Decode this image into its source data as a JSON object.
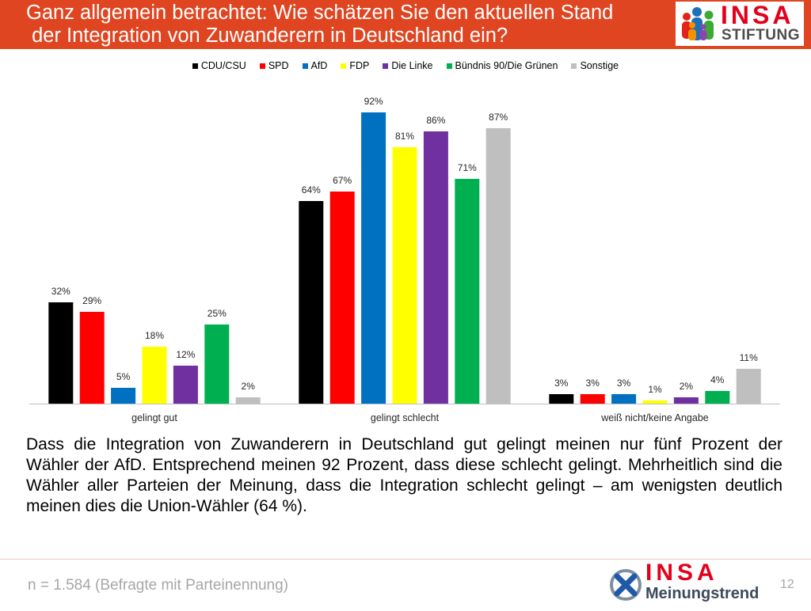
{
  "theme": {
    "header_bg": "#DF4521"
  },
  "header": {
    "title_lines": [
      "Ganz allgemein betrachtet: Wie schätzen Sie den aktuellen Stand",
      " der Integration von Zuwanderern in Deutschland ein?"
    ],
    "logo": {
      "icon": "people-group-icon",
      "name": "INSA",
      "subtitle": "STIFTUNG"
    }
  },
  "chart_data": {
    "type": "bar",
    "categories": [
      "gelingt gut",
      "gelingt schlecht",
      "weiß nicht/keine Angabe"
    ],
    "series": [
      {
        "name": "CDU/CSU",
        "color": "#000000",
        "values": [
          32,
          64,
          3
        ],
        "labels": [
          "32%",
          "64%",
          "3%"
        ]
      },
      {
        "name": "SPD",
        "color": "#FF0000",
        "values": [
          29,
          67,
          3
        ],
        "labels": [
          "29%",
          "67%",
          "3%"
        ]
      },
      {
        "name": "AfD",
        "color": "#0070C0",
        "values": [
          5,
          92,
          3
        ],
        "labels": [
          "5%",
          "92%",
          "3%"
        ]
      },
      {
        "name": "FDP",
        "color": "#FFFF00",
        "values": [
          18,
          81,
          1
        ],
        "labels": [
          "18%",
          "81%",
          "1%"
        ]
      },
      {
        "name": "Die Linke",
        "color": "#7030A0",
        "values": [
          12,
          86,
          2
        ],
        "labels": [
          "12%",
          "86%",
          "2%"
        ]
      },
      {
        "name": "Bündnis 90/Die Grünen",
        "color": "#00B050",
        "values": [
          25,
          71,
          4
        ],
        "labels": [
          "25%",
          "71%",
          "4%"
        ]
      },
      {
        "name": "Sonstige",
        "color": "#BFBFBF",
        "values": [
          2,
          87,
          11
        ],
        "labels": [
          "2%",
          "87%",
          "11%"
        ]
      }
    ],
    "ylim": [
      0,
      100
    ],
    "grid": false,
    "legend_position": "top"
  },
  "body_text_lines": [
    "Dass die Integration von Zuwanderern in Deutschland gut gelingt meinen nur fünf Prozent der",
    "Wähler der AfD. Entsprechend meinen 92 Prozent, dass diese schlecht gelingt. Mehrheitlich sind die",
    "Wähler aller Parteien der Meinung, dass die Integration schlecht gelingt – am wenigsten deutlich",
    "meinen dies die Union-Wähler (64 %)."
  ],
  "footer": {
    "sample_note": "n = 1.584 (Befragte mit Parteinennung)",
    "logo": {
      "icon": "ballot-cross-icon",
      "name": "INSA",
      "subtitle": "Meinungstrend"
    },
    "page_number": "12"
  }
}
